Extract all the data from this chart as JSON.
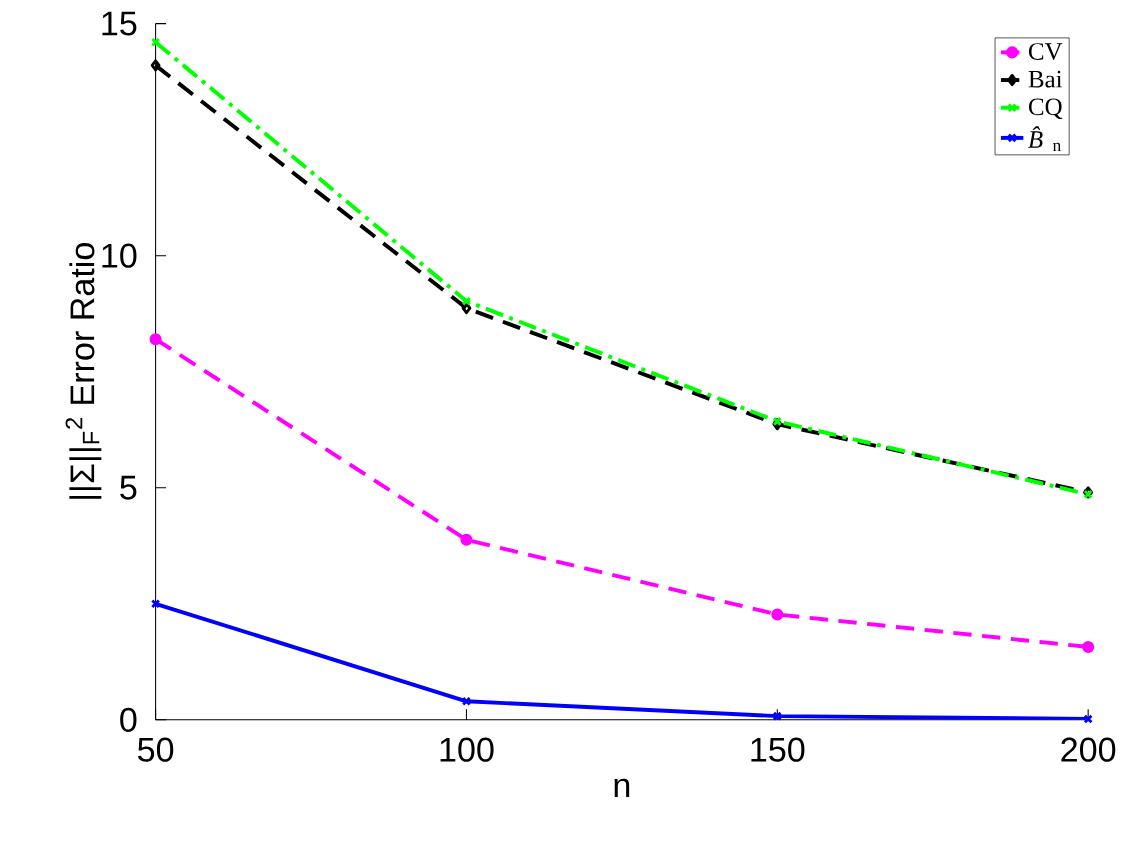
{
  "chart_data": {
    "type": "line",
    "xlabel": "n",
    "ylabel": "||Σ||$_{F}$$^{2}$   Error Ratio",
    "x": [
      50,
      100,
      150,
      200
    ],
    "xlim": [
      50,
      200
    ],
    "xticks": [
      50,
      100,
      150,
      200
    ],
    "ylim": [
      0,
      15
    ],
    "yticks": [
      0,
      5,
      10,
      15
    ],
    "legend": "top right",
    "series": [
      {
        "name": "CV",
        "color": "#ff00ff",
        "marker": "circle",
        "line_style": "dashed",
        "values": [
          8.2,
          3.88,
          2.27,
          1.57
        ]
      },
      {
        "name": "Bai",
        "color": "#000000",
        "marker": "diamond",
        "line_style": "dashed",
        "values": [
          14.1,
          8.87,
          6.37,
          4.9
        ]
      },
      {
        "name": "CQ",
        "color": "#00ff00",
        "marker": "cross",
        "line_style": "dashdot",
        "values": [
          14.6,
          9.02,
          6.43,
          4.86
        ]
      },
      {
        "name": "*B̂*$_{n}$",
        "color": "#0000ff",
        "marker": "cross",
        "line_style": "solid",
        "values": [
          2.5,
          0.4,
          0.08,
          0.02
        ]
      }
    ]
  }
}
